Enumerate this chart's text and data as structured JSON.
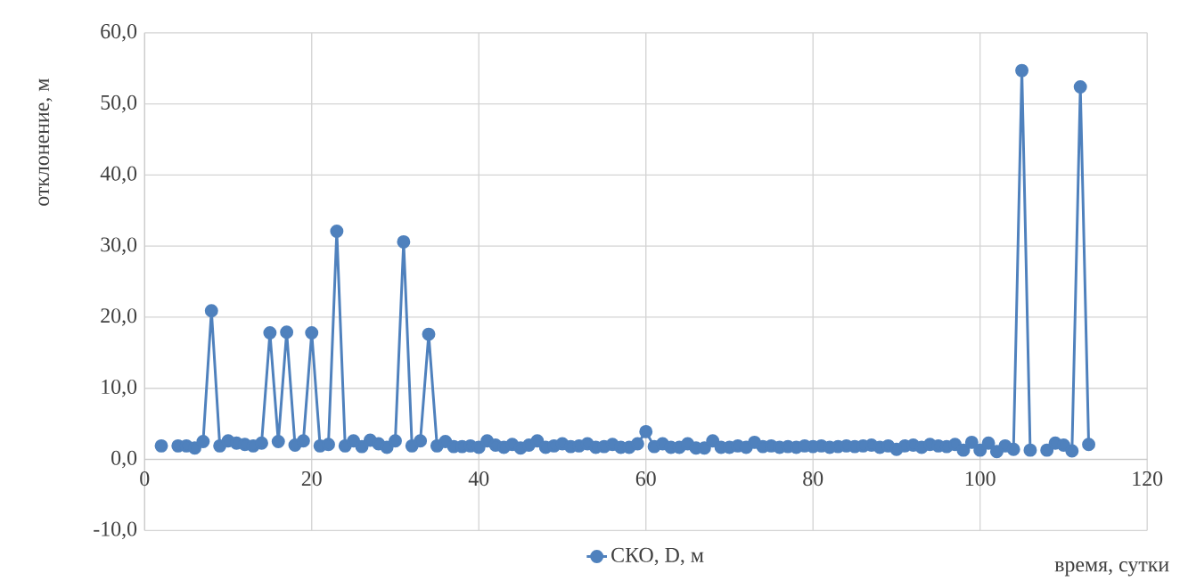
{
  "chart_data": {
    "type": "line",
    "xlabel": "время, сутки",
    "ylabel": "отклонение, м",
    "x": [
      2,
      3,
      4,
      5,
      6,
      7,
      8,
      9,
      10,
      11,
      12,
      13,
      14,
      15,
      16,
      17,
      18,
      19,
      20,
      21,
      22,
      23,
      24,
      25,
      26,
      27,
      28,
      29,
      30,
      31,
      32,
      33,
      34,
      35,
      36,
      37,
      38,
      39,
      40,
      41,
      42,
      43,
      44,
      45,
      46,
      47,
      48,
      49,
      50,
      51,
      52,
      53,
      54,
      55,
      56,
      57,
      58,
      59,
      60,
      61,
      62,
      63,
      64,
      65,
      66,
      67,
      68,
      69,
      70,
      71,
      72,
      73,
      74,
      75,
      76,
      77,
      78,
      79,
      80,
      81,
      82,
      83,
      84,
      85,
      86,
      87,
      88,
      89,
      90,
      91,
      92,
      93,
      94,
      95,
      96,
      97,
      98,
      99,
      100,
      101,
      102,
      103,
      104,
      105,
      106,
      107,
      108,
      109,
      110,
      111,
      112,
      113
    ],
    "series": [
      {
        "name": "СКО, D, м",
        "color": "#4f81bd",
        "values": [
          1.9,
          null,
          1.9,
          1.9,
          1.6,
          2.5,
          20.9,
          1.9,
          2.6,
          2.3,
          2.1,
          1.9,
          2.3,
          17.8,
          2.5,
          17.9,
          2.0,
          2.6,
          17.8,
          1.9,
          2.1,
          32.1,
          1.9,
          2.6,
          1.8,
          2.7,
          2.2,
          1.7,
          2.6,
          30.6,
          1.9,
          2.6,
          17.6,
          1.9,
          2.5,
          1.8,
          1.8,
          1.9,
          1.7,
          2.6,
          2.0,
          1.7,
          2.1,
          1.6,
          2.0,
          2.6,
          1.7,
          1.9,
          2.2,
          1.8,
          1.9,
          2.2,
          1.7,
          1.8,
          2.1,
          1.7,
          1.7,
          2.2,
          3.9,
          1.8,
          2.2,
          1.7,
          1.7,
          2.2,
          1.6,
          1.6,
          2.6,
          1.7,
          1.7,
          1.9,
          1.7,
          2.4,
          1.8,
          1.9,
          1.7,
          1.8,
          1.7,
          1.9,
          1.8,
          1.9,
          1.7,
          1.8,
          1.9,
          1.8,
          1.9,
          2.0,
          1.7,
          1.9,
          1.4,
          1.9,
          2.0,
          1.7,
          2.1,
          1.9,
          1.8,
          2.1,
          1.3,
          2.4,
          1.3,
          2.3,
          1.1,
          1.9,
          1.4,
          54.7,
          1.3,
          null,
          1.3,
          2.3,
          2.0,
          1.2,
          52.4,
          2.1
        ]
      }
    ],
    "xlim": [
      0,
      120
    ],
    "ylim": [
      -10,
      60
    ],
    "xticks": [
      0,
      20,
      40,
      60,
      80,
      100,
      120
    ],
    "yticks": [
      {
        "value": -10,
        "label": "-10,0"
      },
      {
        "value": 0,
        "label": "0,0"
      },
      {
        "value": 10,
        "label": "10,0"
      },
      {
        "value": 20,
        "label": "20,0"
      },
      {
        "value": 30,
        "label": "30,0"
      },
      {
        "value": 40,
        "label": "40,0"
      },
      {
        "value": 50,
        "label": "50,0"
      },
      {
        "value": 60,
        "label": "60,0"
      }
    ],
    "grid": true,
    "legend": "bottom",
    "marker": "circle",
    "line_style": "solid"
  }
}
